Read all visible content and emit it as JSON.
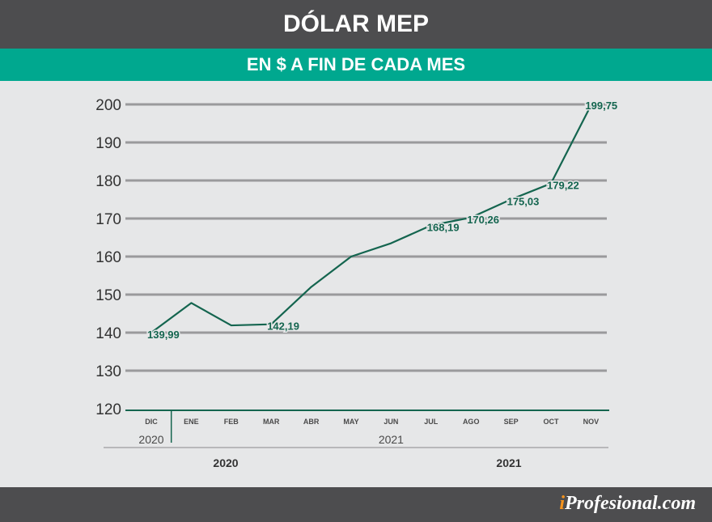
{
  "header": {
    "title": "DÓLAR MEP",
    "subtitle": "EN $  A FIN DE CADA MES"
  },
  "brand": {
    "logo_prefix": "i",
    "logo_rest": "Profesional.com"
  },
  "colors": {
    "line": "#14654f",
    "label": "#14654f",
    "grid": "#9a9a9c",
    "title_bg": "#4d4d4f",
    "subtitle_bg": "#00a88f"
  },
  "chart_data": {
    "type": "line",
    "title": "DÓLAR MEP",
    "subtitle": "EN $  A FIN DE CADA MES",
    "categories": [
      "DIC",
      "ENE",
      "FEB",
      "MAR",
      "ABR",
      "MAY",
      "JUN",
      "JUL",
      "AGO",
      "SEP",
      "OCT",
      "NOV"
    ],
    "year_labels": [
      {
        "label": "2020",
        "span": [
          0,
          0
        ]
      },
      {
        "label": "2021",
        "span": [
          1,
          11
        ]
      }
    ],
    "outer_year_labels": [
      "2020",
      "2021"
    ],
    "series": [
      {
        "values": [
          139.99,
          147.8,
          141.9,
          142.19,
          152.0,
          160.0,
          163.5,
          168.19,
          170.26,
          175.03,
          179.22,
          199.75
        ]
      }
    ],
    "data_labels": [
      {
        "index": 0,
        "text": "139,99"
      },
      {
        "index": 3,
        "text": "142,19"
      },
      {
        "index": 7,
        "text": "168,19"
      },
      {
        "index": 8,
        "text": "170,26"
      },
      {
        "index": 9,
        "text": "175,03"
      },
      {
        "index": 10,
        "text": "179,22"
      },
      {
        "index": 11,
        "text": "199,75"
      }
    ],
    "yticks": [
      120,
      130,
      140,
      150,
      160,
      170,
      180,
      190,
      200
    ],
    "ylim": [
      120,
      200
    ],
    "grid": true,
    "legend": "none"
  }
}
